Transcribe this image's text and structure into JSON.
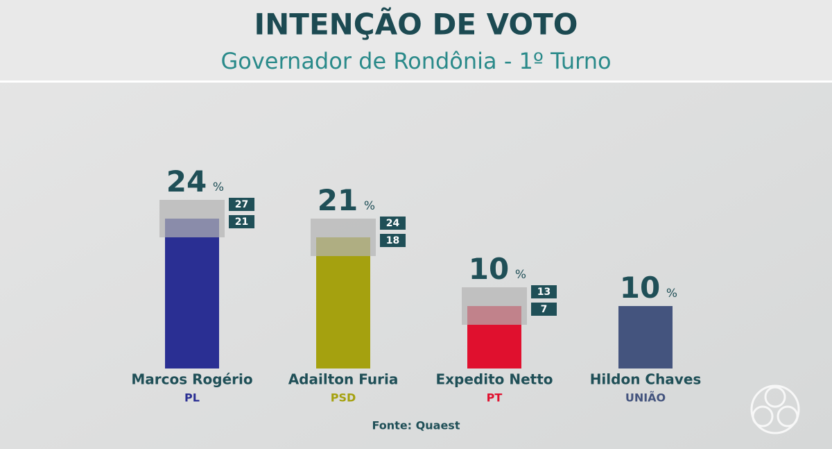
{
  "chart_data": {
    "type": "bar",
    "title": "INTENÇÃO DE VOTO",
    "subtitle": "Governador de Rondônia - 1º Turno",
    "categories": [
      "Marcos Rogério",
      "Adailton Furia",
      "Expedito Netto",
      "Hildon Chaves"
    ],
    "parties": [
      "PL",
      "PSD",
      "PT",
      "UNIÃO"
    ],
    "values": [
      24,
      21,
      10,
      10
    ],
    "value_unit": "%",
    "upper": [
      27,
      24,
      13,
      null
    ],
    "lower": [
      21,
      18,
      7,
      null
    ],
    "colors": [
      "#2a2f93",
      "#a5a10f",
      "#e0102e",
      "#44547e"
    ],
    "ylim": [
      0,
      30
    ],
    "source": "Fonte: Quaest"
  }
}
